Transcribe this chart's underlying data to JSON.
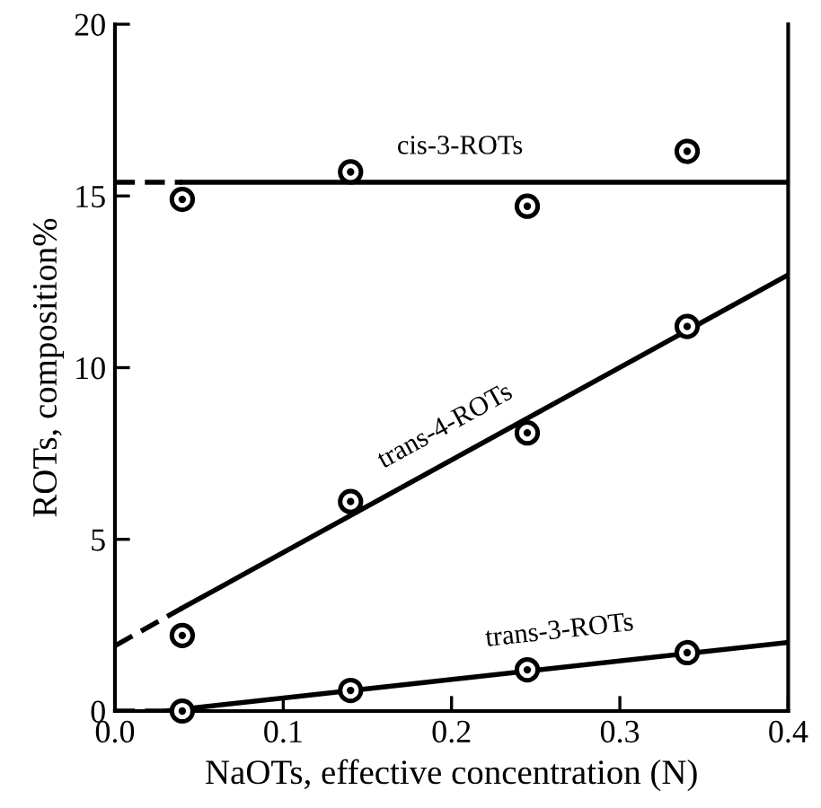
{
  "chart_data": {
    "type": "scatter",
    "xlabel": "NaOTs, effective concentration (N)",
    "ylabel": "ROTs, composition%",
    "xlim": [
      0,
      0.4
    ],
    "ylim": [
      0,
      20
    ],
    "xticks": [
      {
        "value": 0,
        "label": "0.0"
      },
      {
        "value": 0.1,
        "label": "0.1"
      },
      {
        "value": 0.2,
        "label": "0.2"
      },
      {
        "value": 0.3,
        "label": "0.3"
      },
      {
        "value": 0.4,
        "label": "0.4"
      }
    ],
    "yticks": [
      0,
      5,
      10,
      15,
      20
    ],
    "grid": false,
    "legend": false,
    "series": [
      {
        "marker": "circle",
        "color": "#000000",
        "x": [
          0.04,
          0.14,
          0.245,
          0.34
        ],
        "values": [
          14.9,
          15.7,
          14.7,
          16.3
        ]
      },
      {
        "marker": "circle",
        "color": "#000000",
        "x": [
          0.04,
          0.14,
          0.245,
          0.34
        ],
        "values": [
          2.2,
          6.1,
          8.1,
          11.2
        ]
      },
      {
        "marker": "circle",
        "color": "#000000",
        "x": [
          0.04,
          0.14,
          0.245,
          0.34
        ],
        "values": [
          0,
          0.6,
          1.2,
          1.7
        ]
      },
      {
        "type": "line",
        "color": "#000000",
        "line_style": "dashed",
        "x": [
          0,
          0.04
        ],
        "values": [
          15.4,
          15.4
        ]
      },
      {
        "type": "line",
        "color": "#000000",
        "line_style": "solid",
        "x": [
          0.04,
          0.4
        ],
        "values": [
          15.4,
          15.4
        ]
      },
      {
        "type": "line",
        "color": "#000000",
        "line_style": "dashed",
        "x": [
          0,
          0.04
        ],
        "values": [
          1.9,
          3.0
        ]
      },
      {
        "type": "line",
        "color": "#000000",
        "line_style": "solid",
        "x": [
          0.04,
          0.4
        ],
        "values": [
          3.0,
          12.7
        ]
      },
      {
        "type": "line",
        "color": "#000000",
        "line_style": "dashed",
        "x": [
          0,
          0.03
        ],
        "values": [
          0,
          0
        ]
      },
      {
        "type": "line",
        "color": "#000000",
        "line_style": "solid",
        "x": [
          0.03,
          0.4
        ],
        "values": [
          0,
          2.0
        ]
      }
    ],
    "annotations": [
      {
        "text": "cis-3-ROTs",
        "x": 0.205,
        "y": 15.4
      },
      {
        "text": "trans-4-ROTs",
        "x": 0.2,
        "y": 7.3
      },
      {
        "text": "trans-3-ROTs",
        "x": 0.265,
        "y": 1.3
      }
    ]
  }
}
